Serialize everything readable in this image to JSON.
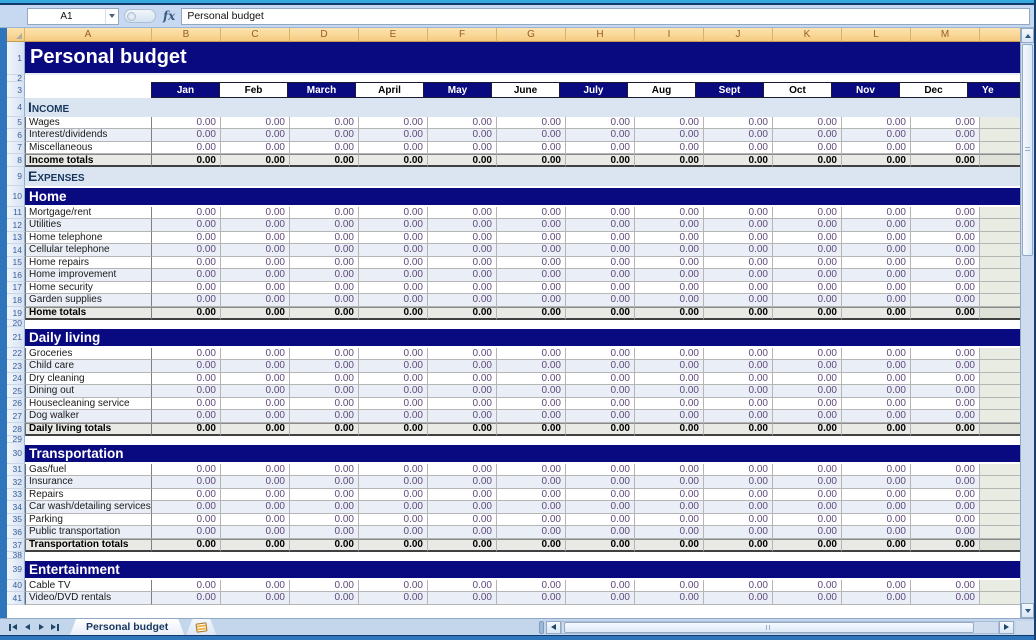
{
  "formula_bar": {
    "cell_reference": "A1",
    "function_icon": "fx",
    "content": "Personal budget"
  },
  "column_headers": [
    "A",
    "B",
    "C",
    "D",
    "E",
    "F",
    "G",
    "H",
    "I",
    "J",
    "K",
    "L",
    "M"
  ],
  "months": [
    "Jan",
    "Feb",
    "March",
    "April",
    "May",
    "June",
    "July",
    "Aug",
    "Sept",
    "Oct",
    "Nov",
    "Dec"
  ],
  "year_header_fragment": "Ye",
  "tab_bar": {
    "active_tab": "Personal budget"
  },
  "colors": {
    "navy": "#0a0a80",
    "value_purple": "#5f497a",
    "caps_blue": "#dbe5f1",
    "totals_gray": "#e9e9e5",
    "header_tan": "#f5cb82"
  },
  "rows": [
    {
      "n": 1,
      "type": "title",
      "label": "Personal budget"
    },
    {
      "n": 2,
      "type": "spacer"
    },
    {
      "n": 3,
      "type": "months"
    },
    {
      "n": 4,
      "type": "caps",
      "label": "Income"
    },
    {
      "n": 5,
      "type": "data",
      "label": "Wages",
      "values": [
        "0.00",
        "0.00",
        "0.00",
        "0.00",
        "0.00",
        "0.00",
        "0.00",
        "0.00",
        "0.00",
        "0.00",
        "0.00",
        "0.00"
      ]
    },
    {
      "n": 6,
      "type": "data",
      "label": "Interest/dividends",
      "values": [
        "0.00",
        "0.00",
        "0.00",
        "0.00",
        "0.00",
        "0.00",
        "0.00",
        "0.00",
        "0.00",
        "0.00",
        "0.00",
        "0.00"
      ]
    },
    {
      "n": 7,
      "type": "data",
      "label": "Miscellaneous",
      "values": [
        "0.00",
        "0.00",
        "0.00",
        "0.00",
        "0.00",
        "0.00",
        "0.00",
        "0.00",
        "0.00",
        "0.00",
        "0.00",
        "0.00"
      ]
    },
    {
      "n": 8,
      "type": "totals",
      "label": "Income totals",
      "values": [
        "0.00",
        "0.00",
        "0.00",
        "0.00",
        "0.00",
        "0.00",
        "0.00",
        "0.00",
        "0.00",
        "0.00",
        "0.00",
        "0.00"
      ]
    },
    {
      "n": 9,
      "type": "caps",
      "label": "Expenses"
    },
    {
      "n": 10,
      "type": "band",
      "label": "Home"
    },
    {
      "n": 11,
      "type": "data",
      "label": "Mortgage/rent",
      "values": [
        "0.00",
        "0.00",
        "0.00",
        "0.00",
        "0.00",
        "0.00",
        "0.00",
        "0.00",
        "0.00",
        "0.00",
        "0.00",
        "0.00"
      ]
    },
    {
      "n": 12,
      "type": "data",
      "label": "Utilities",
      "values": [
        "0.00",
        "0.00",
        "0.00",
        "0.00",
        "0.00",
        "0.00",
        "0.00",
        "0.00",
        "0.00",
        "0.00",
        "0.00",
        "0.00"
      ]
    },
    {
      "n": 13,
      "type": "data",
      "label": "Home telephone",
      "values": [
        "0.00",
        "0.00",
        "0.00",
        "0.00",
        "0.00",
        "0.00",
        "0.00",
        "0.00",
        "0.00",
        "0.00",
        "0.00",
        "0.00"
      ]
    },
    {
      "n": 14,
      "type": "data",
      "label": "Cellular telephone",
      "values": [
        "0.00",
        "0.00",
        "0.00",
        "0.00",
        "0.00",
        "0.00",
        "0.00",
        "0.00",
        "0.00",
        "0.00",
        "0.00",
        "0.00"
      ]
    },
    {
      "n": 15,
      "type": "data",
      "label": "Home repairs",
      "values": [
        "0.00",
        "0.00",
        "0.00",
        "0.00",
        "0.00",
        "0.00",
        "0.00",
        "0.00",
        "0.00",
        "0.00",
        "0.00",
        "0.00"
      ]
    },
    {
      "n": 16,
      "type": "data",
      "label": "Home improvement",
      "values": [
        "0.00",
        "0.00",
        "0.00",
        "0.00",
        "0.00",
        "0.00",
        "0.00",
        "0.00",
        "0.00",
        "0.00",
        "0.00",
        "0.00"
      ]
    },
    {
      "n": 17,
      "type": "data",
      "label": "Home security",
      "values": [
        "0.00",
        "0.00",
        "0.00",
        "0.00",
        "0.00",
        "0.00",
        "0.00",
        "0.00",
        "0.00",
        "0.00",
        "0.00",
        "0.00"
      ]
    },
    {
      "n": 18,
      "type": "data",
      "label": "Garden supplies",
      "values": [
        "0.00",
        "0.00",
        "0.00",
        "0.00",
        "0.00",
        "0.00",
        "0.00",
        "0.00",
        "0.00",
        "0.00",
        "0.00",
        "0.00"
      ]
    },
    {
      "n": 19,
      "type": "totals",
      "label": "Home totals",
      "values": [
        "0.00",
        "0.00",
        "0.00",
        "0.00",
        "0.00",
        "0.00",
        "0.00",
        "0.00",
        "0.00",
        "0.00",
        "0.00",
        "0.00"
      ]
    },
    {
      "n": 20,
      "type": "spacer"
    },
    {
      "n": 21,
      "type": "band",
      "label": "Daily living"
    },
    {
      "n": 22,
      "type": "data",
      "label": "Groceries",
      "values": [
        "0.00",
        "0.00",
        "0.00",
        "0.00",
        "0.00",
        "0.00",
        "0.00",
        "0.00",
        "0.00",
        "0.00",
        "0.00",
        "0.00"
      ]
    },
    {
      "n": 23,
      "type": "data",
      "label": "Child care",
      "values": [
        "0.00",
        "0.00",
        "0.00",
        "0.00",
        "0.00",
        "0.00",
        "0.00",
        "0.00",
        "0.00",
        "0.00",
        "0.00",
        "0.00"
      ]
    },
    {
      "n": 24,
      "type": "data",
      "label": "Dry cleaning",
      "values": [
        "0.00",
        "0.00",
        "0.00",
        "0.00",
        "0.00",
        "0.00",
        "0.00",
        "0.00",
        "0.00",
        "0.00",
        "0.00",
        "0.00"
      ]
    },
    {
      "n": 25,
      "type": "data",
      "label": "Dining out",
      "values": [
        "0.00",
        "0.00",
        "0.00",
        "0.00",
        "0.00",
        "0.00",
        "0.00",
        "0.00",
        "0.00",
        "0.00",
        "0.00",
        "0.00"
      ]
    },
    {
      "n": 26,
      "type": "data",
      "label": "Housecleaning service",
      "values": [
        "0.00",
        "0.00",
        "0.00",
        "0.00",
        "0.00",
        "0.00",
        "0.00",
        "0.00",
        "0.00",
        "0.00",
        "0.00",
        "0.00"
      ]
    },
    {
      "n": 27,
      "type": "data",
      "label": "Dog walker",
      "values": [
        "0.00",
        "0.00",
        "0.00",
        "0.00",
        "0.00",
        "0.00",
        "0.00",
        "0.00",
        "0.00",
        "0.00",
        "0.00",
        "0.00"
      ]
    },
    {
      "n": 28,
      "type": "totals",
      "label": "Daily living totals",
      "values": [
        "0.00",
        "0.00",
        "0.00",
        "0.00",
        "0.00",
        "0.00",
        "0.00",
        "0.00",
        "0.00",
        "0.00",
        "0.00",
        "0.00"
      ]
    },
    {
      "n": 29,
      "type": "spacer"
    },
    {
      "n": 30,
      "type": "band",
      "label": "Transportation"
    },
    {
      "n": 31,
      "type": "data",
      "label": "Gas/fuel",
      "values": [
        "0.00",
        "0.00",
        "0.00",
        "0.00",
        "0.00",
        "0.00",
        "0.00",
        "0.00",
        "0.00",
        "0.00",
        "0.00",
        "0.00"
      ]
    },
    {
      "n": 32,
      "type": "data",
      "label": "Insurance",
      "values": [
        "0.00",
        "0.00",
        "0.00",
        "0.00",
        "0.00",
        "0.00",
        "0.00",
        "0.00",
        "0.00",
        "0.00",
        "0.00",
        "0.00"
      ]
    },
    {
      "n": 33,
      "type": "data",
      "label": "Repairs",
      "values": [
        "0.00",
        "0.00",
        "0.00",
        "0.00",
        "0.00",
        "0.00",
        "0.00",
        "0.00",
        "0.00",
        "0.00",
        "0.00",
        "0.00"
      ]
    },
    {
      "n": 34,
      "type": "data",
      "label": "Car wash/detailing services",
      "values": [
        "0.00",
        "0.00",
        "0.00",
        "0.00",
        "0.00",
        "0.00",
        "0.00",
        "0.00",
        "0.00",
        "0.00",
        "0.00",
        "0.00"
      ]
    },
    {
      "n": 35,
      "type": "data",
      "label": "Parking",
      "values": [
        "0.00",
        "0.00",
        "0.00",
        "0.00",
        "0.00",
        "0.00",
        "0.00",
        "0.00",
        "0.00",
        "0.00",
        "0.00",
        "0.00"
      ]
    },
    {
      "n": 36,
      "type": "data",
      "label": "Public transportation",
      "values": [
        "0.00",
        "0.00",
        "0.00",
        "0.00",
        "0.00",
        "0.00",
        "0.00",
        "0.00",
        "0.00",
        "0.00",
        "0.00",
        "0.00"
      ]
    },
    {
      "n": 37,
      "type": "totals",
      "label": "Transportation totals",
      "values": [
        "0.00",
        "0.00",
        "0.00",
        "0.00",
        "0.00",
        "0.00",
        "0.00",
        "0.00",
        "0.00",
        "0.00",
        "0.00",
        "0.00"
      ]
    },
    {
      "n": 38,
      "type": "spacer"
    },
    {
      "n": 39,
      "type": "band",
      "label": "Entertainment"
    },
    {
      "n": 40,
      "type": "data",
      "label": "Cable TV",
      "values": [
        "0.00",
        "0.00",
        "0.00",
        "0.00",
        "0.00",
        "0.00",
        "0.00",
        "0.00",
        "0.00",
        "0.00",
        "0.00",
        "0.00"
      ]
    },
    {
      "n": 41,
      "type": "data",
      "label": "Video/DVD rentals",
      "values": [
        "0.00",
        "0.00",
        "0.00",
        "0.00",
        "0.00",
        "0.00",
        "0.00",
        "0.00",
        "0.00",
        "0.00",
        "0.00",
        "0.00"
      ]
    }
  ]
}
